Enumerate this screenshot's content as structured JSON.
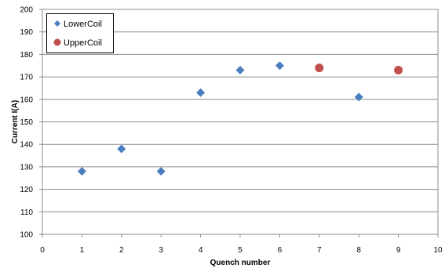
{
  "chart_data": {
    "type": "scatter",
    "title": "",
    "xlabel": "Quench number",
    "ylabel": "Current I(A)",
    "xlim": [
      0,
      10
    ],
    "ylim": [
      100,
      200
    ],
    "xticks": [
      "0",
      "1",
      "2",
      "3",
      "4",
      "5",
      "6",
      "7",
      "8",
      "9",
      "10"
    ],
    "yticks": [
      "100",
      "110",
      "120",
      "130",
      "140",
      "150",
      "160",
      "170",
      "180",
      "190",
      "200"
    ],
    "grid": "horizontal",
    "legend_position": "top-left",
    "series": [
      {
        "name": "LowerCoil",
        "marker": "diamond",
        "color": "#4a7ebf",
        "points": [
          [
            1,
            128
          ],
          [
            2,
            138
          ],
          [
            3,
            128
          ],
          [
            4,
            163
          ],
          [
            5,
            173
          ],
          [
            6,
            175
          ],
          [
            8,
            161
          ]
        ]
      },
      {
        "name": "UpperCoil",
        "marker": "circle",
        "color": "#c0504d",
        "points": [
          [
            7,
            174
          ],
          [
            9,
            173
          ]
        ]
      }
    ]
  }
}
